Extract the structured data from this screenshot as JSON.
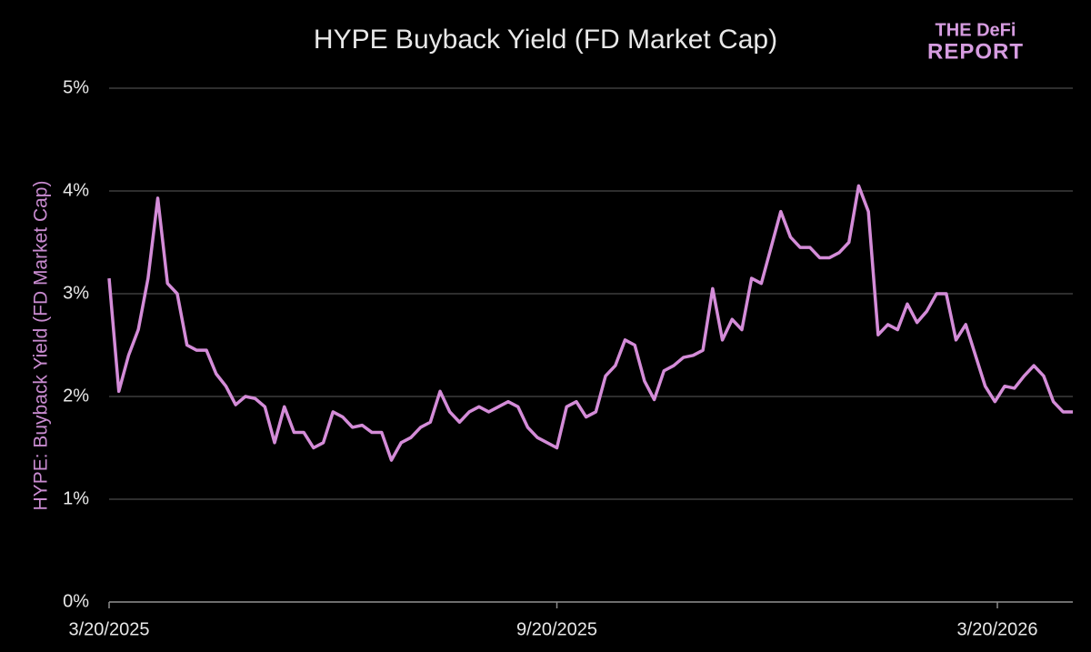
{
  "chart_data": {
    "type": "line",
    "title": "HYPE Buyback Yield (FD Market Cap)",
    "y_label": "HYPE: Buyback Yield (FD Market Cap)",
    "logo": [
      "THE DeFi",
      "REPORT"
    ],
    "x": [
      "2025-03-20",
      "2025-03-24",
      "2025-03-28",
      "2025-04-01",
      "2025-04-05",
      "2025-04-09",
      "2025-04-13",
      "2025-04-17",
      "2025-04-21",
      "2025-04-25",
      "2025-04-29",
      "2025-05-03",
      "2025-05-07",
      "2025-05-11",
      "2025-05-15",
      "2025-05-19",
      "2025-05-23",
      "2025-05-27",
      "2025-05-31",
      "2025-06-04",
      "2025-06-08",
      "2025-06-12",
      "2025-06-16",
      "2025-06-20",
      "2025-06-24",
      "2025-06-28",
      "2025-07-02",
      "2025-07-06",
      "2025-07-10",
      "2025-07-14",
      "2025-07-18",
      "2025-07-22",
      "2025-07-26",
      "2025-07-30",
      "2025-08-03",
      "2025-08-07",
      "2025-08-11",
      "2025-08-15",
      "2025-08-19",
      "2025-08-23",
      "2025-08-27",
      "2025-08-31",
      "2025-09-04",
      "2025-09-08",
      "2025-09-12",
      "2025-09-16",
      "2025-09-20",
      "2025-09-24",
      "2025-09-28",
      "2025-10-02",
      "2025-10-06",
      "2025-10-10",
      "2025-10-14",
      "2025-10-18",
      "2025-10-22",
      "2025-10-26",
      "2025-10-30",
      "2025-11-03",
      "2025-11-07",
      "2025-11-11",
      "2025-11-15",
      "2025-11-19",
      "2025-11-23",
      "2025-11-27",
      "2025-12-01",
      "2025-12-05",
      "2025-12-09",
      "2025-12-13",
      "2025-12-17",
      "2025-12-21",
      "2025-12-25",
      "2025-12-29",
      "2026-01-02",
      "2026-01-06",
      "2026-01-10",
      "2026-01-14",
      "2026-01-18",
      "2026-01-22",
      "2026-01-26",
      "2026-01-30",
      "2026-02-03",
      "2026-02-07",
      "2026-02-11",
      "2026-02-15",
      "2026-02-19",
      "2026-02-23",
      "2026-02-27",
      "2026-03-03",
      "2026-03-07",
      "2026-03-11",
      "2026-03-15",
      "2026-03-19",
      "2026-03-23",
      "2026-03-27",
      "2026-03-31",
      "2026-04-04",
      "2026-04-08",
      "2026-04-12",
      "2026-04-16",
      "2026-04-20"
    ],
    "series": [
      {
        "name": "HYPE Buyback Yield",
        "color": "#d48cd8",
        "values": [
          3.15,
          2.05,
          2.4,
          2.65,
          3.15,
          3.93,
          3.1,
          3.0,
          2.5,
          2.45,
          2.45,
          2.22,
          2.1,
          1.92,
          2.0,
          1.98,
          1.9,
          1.55,
          1.9,
          1.65,
          1.65,
          1.5,
          1.55,
          1.85,
          1.8,
          1.7,
          1.72,
          1.65,
          1.65,
          1.38,
          1.55,
          1.6,
          1.7,
          1.75,
          2.05,
          1.85,
          1.75,
          1.85,
          1.9,
          1.85,
          1.9,
          1.95,
          1.9,
          1.7,
          1.6,
          1.55,
          1.5,
          1.9,
          1.95,
          1.8,
          1.85,
          2.2,
          2.3,
          2.55,
          2.5,
          2.15,
          1.97,
          2.25,
          2.3,
          2.38,
          2.4,
          2.45,
          3.05,
          2.55,
          2.75,
          2.65,
          3.15,
          3.1,
          3.45,
          3.8,
          3.55,
          3.45,
          3.45,
          3.35,
          3.35,
          3.4,
          3.5,
          4.05,
          3.8,
          2.6,
          2.7,
          2.65,
          2.9,
          2.72,
          2.83,
          3.0,
          3.0,
          2.55,
          2.7,
          2.4,
          2.1,
          1.95,
          2.1,
          2.08,
          2.2,
          2.3,
          2.2,
          1.95,
          1.85,
          1.85
        ]
      }
    ],
    "xlim": [
      "2025-03-20",
      "2026-04-20"
    ],
    "xticks": [
      {
        "value": "2025-03-20",
        "label": "3/20/2025"
      },
      {
        "value": "2025-09-20",
        "label": "9/20/2025"
      },
      {
        "value": "2026-03-20",
        "label": "3/20/2026"
      }
    ],
    "ylim": [
      0,
      5
    ],
    "yticks": [
      {
        "value": 0,
        "label": "0%"
      },
      {
        "value": 1,
        "label": "1%"
      },
      {
        "value": 2,
        "label": "2%"
      },
      {
        "value": 3,
        "label": "3%"
      },
      {
        "value": 4,
        "label": "4%"
      },
      {
        "value": 5,
        "label": "5%"
      }
    ],
    "grid": true
  }
}
